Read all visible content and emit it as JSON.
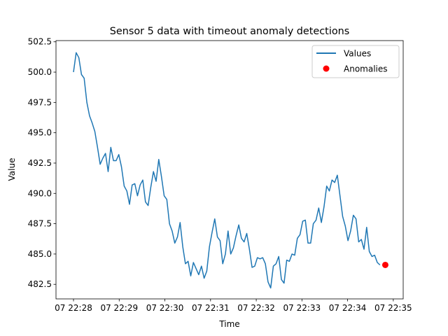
{
  "chart_data": {
    "type": "line",
    "title": "Sensor 5 data with timeout anomaly detections",
    "xlabel": "Time",
    "ylabel": "Value",
    "ylim": [
      481.3,
      502.6
    ],
    "yticks": [
      482.5,
      485.0,
      487.5,
      490.0,
      492.5,
      495.0,
      497.5,
      500.0,
      502.5
    ],
    "ytick_labels": [
      "482.5",
      "485.0",
      "487.5",
      "490.0",
      "492.5",
      "495.0",
      "497.5",
      "500.0",
      "502.5"
    ],
    "xlim_seconds_after_22_28": [
      -23,
      433
    ],
    "xtick_labels": [
      "07 22:28",
      "07 22:29",
      "07 22:30",
      "07 22:31",
      "07 22:32",
      "07 22:33",
      "07 22:34",
      "07 22:35"
    ],
    "series_color": "#1f77b4",
    "anomaly_color": "#ff0000",
    "legend": {
      "position": "top-right",
      "entries": [
        "Values",
        "Anomalies"
      ]
    },
    "series": [
      {
        "name": "Values",
        "t_seconds_after_22_28": [
          0,
          3.5,
          7,
          10.5,
          14,
          17.5,
          21,
          24.5,
          28,
          31.5,
          35,
          38.5,
          42,
          45.5,
          49,
          52.5,
          56,
          59.5,
          63,
          66.5,
          70,
          73.5,
          77,
          80.5,
          84,
          87.5,
          91,
          94.5,
          98,
          101.5,
          105,
          108.5,
          112,
          115.5,
          119,
          122.5,
          126,
          129.5,
          133,
          136.5,
          140,
          143.5,
          147,
          150.5,
          154,
          157.5,
          161,
          164.5,
          168,
          171.5,
          175,
          178.5,
          182,
          185.5,
          189,
          192.5,
          196,
          199.5,
          203,
          206.5,
          210,
          213.5,
          217,
          220.5,
          224,
          227.5,
          231,
          234.5,
          238,
          241.5,
          245,
          248.5,
          252,
          255.5,
          259,
          262.5,
          266,
          269.5,
          273,
          276.5,
          280,
          283.5,
          287,
          290.5,
          294,
          297.5,
          301,
          304.5,
          308,
          311.5,
          315,
          318.5,
          322,
          325.5,
          329,
          332.5,
          336,
          339.5,
          343,
          346.5,
          350,
          353.5,
          357,
          360.5,
          364,
          367.5,
          371,
          374.5,
          378,
          381.5,
          385,
          388.5,
          392,
          395.5,
          399,
          402.5,
          406,
          409.5
        ],
        "values": [
          500.0,
          501.6,
          501.2,
          499.8,
          499.5,
          497.5,
          496.4,
          495.8,
          495.1,
          493.8,
          492.4,
          492.9,
          493.3,
          491.8,
          493.8,
          492.7,
          492.7,
          493.2,
          492.2,
          490.6,
          490.2,
          489.1,
          490.7,
          490.8,
          489.8,
          490.7,
          491.1,
          489.3,
          489.0,
          490.5,
          491.8,
          491.0,
          492.8,
          491.4,
          489.8,
          489.5,
          487.5,
          486.9,
          485.9,
          486.4,
          487.6,
          485.6,
          484.2,
          484.4,
          483.2,
          484.3,
          483.8,
          483.3,
          484.0,
          483.0,
          483.6,
          485.6,
          486.8,
          487.9,
          486.4,
          486.1,
          484.2,
          485.0,
          486.9,
          485.0,
          485.5,
          486.5,
          487.4,
          486.3,
          486.0,
          486.7,
          485.4,
          483.9,
          484.0,
          484.7,
          484.6,
          484.7,
          484.2,
          482.7,
          482.2,
          484.0,
          484.2,
          484.8,
          482.9,
          482.6,
          484.5,
          484.4,
          485.0,
          484.9,
          486.3,
          486.6,
          487.7,
          487.8,
          485.9,
          485.9,
          487.5,
          487.8,
          488.8,
          487.6,
          488.9,
          490.6,
          490.2,
          491.1,
          490.9,
          491.5,
          489.8,
          488.1,
          487.3,
          486.1,
          486.9,
          488.2,
          487.9,
          486.0,
          486.2,
          485.4,
          487.2,
          485.2,
          484.8,
          484.9,
          484.3,
          484.1
        ],
        "color": "#1f77b4"
      }
    ],
    "anomalies": [
      {
        "t_seconds_after_22_28": 409.5,
        "value": 484.1,
        "color": "#ff0000"
      }
    ]
  }
}
